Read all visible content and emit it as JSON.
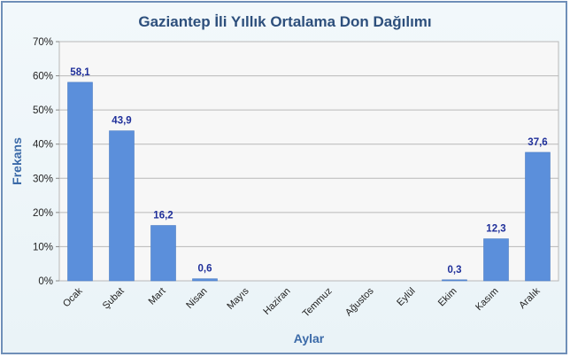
{
  "chart_data": {
    "type": "bar",
    "title": "Gaziantep İli Yıllık Ortalama Don Dağılımı",
    "xlabel": "Aylar",
    "ylabel": "Frekans",
    "ylim": [
      0,
      70
    ],
    "yticks": [
      "0%",
      "10%",
      "20%",
      "30%",
      "40%",
      "50%",
      "60%",
      "70%"
    ],
    "grid": true,
    "bar_color": "#5b8fdb",
    "categories": [
      "Ocak",
      "Şubat",
      "Mart",
      "Nisan",
      "Mayıs",
      "Haziran",
      "Temmuz",
      "Ağustos",
      "Eylül",
      "Ekim",
      "Kasım",
      "Aralık"
    ],
    "values": [
      58.1,
      43.9,
      16.2,
      0.6,
      0,
      0,
      0,
      0,
      0,
      0.3,
      12.3,
      37.6
    ],
    "data_labels": [
      "58,1",
      "43,9",
      "16,2",
      "0,6",
      "",
      "",
      "",
      "",
      "",
      "0,3",
      "12,3",
      "37,6"
    ]
  }
}
